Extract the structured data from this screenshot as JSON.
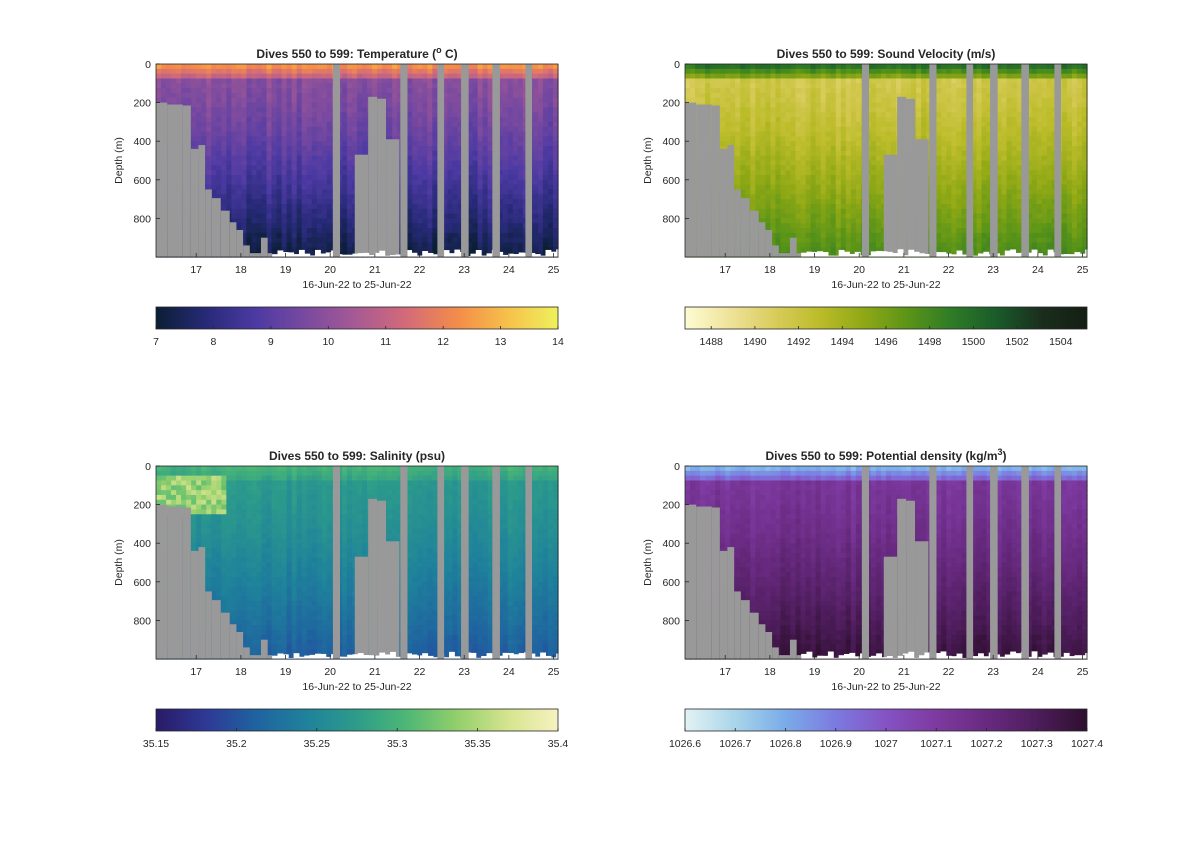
{
  "figure": {
    "shared_xticks": [
      "17",
      "18",
      "19",
      "20",
      "21",
      "22",
      "23",
      "24",
      "25"
    ],
    "shared_yticks": [
      "0",
      "200",
      "400",
      "600",
      "800"
    ],
    "shared_xlabel": "16-Jun-22 to 25-Jun-22",
    "shared_ylabel": "Depth (m)",
    "mask_color": "#999999"
  },
  "chart_data": [
    {
      "type": "heatmap",
      "title_main": "Dives 550 to 599: Temperature (",
      "title_sup": "o",
      "title_end": " C)",
      "xlabel": "16-Jun-22 to 25-Jun-22",
      "ylabel": "Depth (m)",
      "x_range": [
        16.1,
        25.1
      ],
      "y_range": [
        0,
        1000
      ],
      "y_reversed": true,
      "x_ticks": [
        17,
        18,
        19,
        20,
        21,
        22,
        23,
        24,
        25
      ],
      "y_ticks": [
        0,
        200,
        400,
        600,
        800
      ],
      "colorbar": {
        "ticks": [
          "7",
          "8",
          "9",
          "10",
          "11",
          "12",
          "13",
          "14"
        ],
        "tick_values": [
          7,
          8,
          9,
          10,
          11,
          12,
          13,
          14
        ],
        "range": [
          7,
          14
        ],
        "colors": [
          "#0a1e34",
          "#272a78",
          "#4d3aa3",
          "#7a4aa0",
          "#a85a93",
          "#d46b78",
          "#f38c4a",
          "#f6c14a",
          "#eef15c"
        ]
      },
      "field": {
        "surface": 12.6,
        "upper": 9.9,
        "deep": 7.3,
        "profile": "temperature"
      }
    },
    {
      "type": "heatmap",
      "title_main": "Dives 550 to 599: Sound Velocity (m/s)",
      "title_sup": "",
      "title_end": "",
      "xlabel": "16-Jun-22 to 25-Jun-22",
      "ylabel": "Depth (m)",
      "x_range": [
        16.1,
        25.1
      ],
      "y_range": [
        0,
        1000
      ],
      "y_reversed": true,
      "x_ticks": [
        17,
        18,
        19,
        20,
        21,
        22,
        23,
        24,
        25
      ],
      "y_ticks": [
        0,
        200,
        400,
        600,
        800
      ],
      "colorbar": {
        "ticks": [
          "1488",
          "1490",
          "1492",
          "1494",
          "1496",
          "1498",
          "1500",
          "1502",
          "1504"
        ],
        "tick_values": [
          1488,
          1490,
          1492,
          1494,
          1496,
          1498,
          1500,
          1502,
          1504
        ],
        "range": [
          1486.8,
          1505.2
        ],
        "colors": [
          "#fdfbd3",
          "#efe39a",
          "#d9cc5c",
          "#bcbc2a",
          "#8fa815",
          "#5a9418",
          "#2d7a27",
          "#1a5a2a",
          "#1a2d1c",
          "#141e14"
        ]
      },
      "field": {
        "surface": 1500.5,
        "upper": 1491.5,
        "deep": 1497.5,
        "profile": "sound"
      }
    },
    {
      "type": "heatmap",
      "title_main": "Dives 550 to 599: Salinity (psu)",
      "title_sup": "",
      "title_end": "",
      "xlabel": "16-Jun-22 to 25-Jun-22",
      "ylabel": "Depth (m)",
      "x_range": [
        16.1,
        25.1
      ],
      "y_range": [
        0,
        1000
      ],
      "y_reversed": true,
      "x_ticks": [
        17,
        18,
        19,
        20,
        21,
        22,
        23,
        24,
        25
      ],
      "y_ticks": [
        0,
        200,
        400,
        600,
        800
      ],
      "colorbar": {
        "ticks": [
          "35.15",
          "35.2",
          "35.25",
          "35.3",
          "35.35",
          "35.4"
        ],
        "tick_values": [
          35.15,
          35.2,
          35.25,
          35.3,
          35.35,
          35.4
        ],
        "range": [
          35.15,
          35.4
        ],
        "colors": [
          "#2a1a66",
          "#2e3996",
          "#1f63a0",
          "#1f829b",
          "#2d9c8a",
          "#4eb874",
          "#93cf6c",
          "#d5e48e",
          "#f7f2c0"
        ]
      },
      "field": {
        "surface": 35.3,
        "upper": 35.27,
        "deep": 35.21,
        "profile": "salinity"
      }
    },
    {
      "type": "heatmap",
      "title_main": "Dives 550 to 599: Potential density (kg/m",
      "title_sup": "3",
      "title_end": ")",
      "xlabel": "16-Jun-22 to 25-Jun-22",
      "ylabel": "Depth (m)",
      "x_range": [
        16.1,
        25.1
      ],
      "y_range": [
        0,
        1000
      ],
      "y_reversed": true,
      "x_ticks": [
        17,
        18,
        19,
        20,
        21,
        22,
        23,
        24,
        25
      ],
      "y_ticks": [
        0,
        200,
        400,
        600,
        800
      ],
      "colorbar": {
        "ticks": [
          "1026.6",
          "1026.7",
          "1026.8",
          "1026.9",
          "1027",
          "1027.1",
          "1027.2",
          "1027.3",
          "1027.4"
        ],
        "tick_values": [
          1026.6,
          1026.7,
          1026.8,
          1026.9,
          1027.0,
          1027.1,
          1027.2,
          1027.3,
          1027.4
        ],
        "range": [
          1026.6,
          1027.4
        ],
        "colors": [
          "#e4f2f4",
          "#a8d5ea",
          "#7aabe8",
          "#7c7ae0",
          "#8552c4",
          "#7e3aa0",
          "#682a80",
          "#4e1d5c",
          "#2e0f2e"
        ]
      },
      "field": {
        "surface": 1026.75,
        "upper": 1027.12,
        "deep": 1027.36,
        "profile": "density"
      }
    }
  ]
}
